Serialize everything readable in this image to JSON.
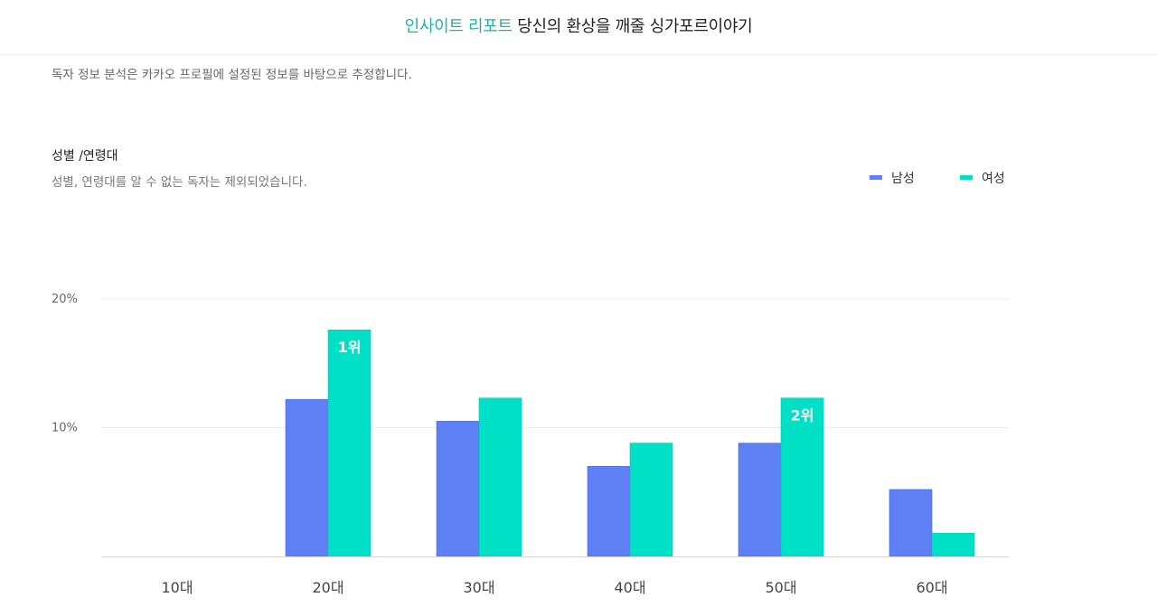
{
  "header": {
    "brand": "인사이트 리포트",
    "title": "당신의 환상을 깨줄 싱가포르이야기"
  },
  "notice": "독자 정보 분석은 카카오 프로필에 설정된 정보를 바탕으로 추정합니다.",
  "section": {
    "title": "성별 /연령대",
    "description": "성별, 연령대를 알 수 없는 독자는 제외되었습니다."
  },
  "colors": {
    "male": "#5f80f5",
    "female": "#00e0c6",
    "brand": "#1bb3a8"
  },
  "chart_data": {
    "type": "bar",
    "categories": [
      "10대",
      "20대",
      "30대",
      "40대",
      "50대",
      "60대"
    ],
    "series": [
      {
        "name": "남성",
        "values": [
          0,
          12.2,
          10.5,
          7.0,
          8.8,
          5.2
        ]
      },
      {
        "name": "여성",
        "values": [
          0,
          17.6,
          12.3,
          8.8,
          12.3,
          1.8
        ]
      }
    ],
    "ylim": [
      0,
      20
    ],
    "yticks": [
      {
        "value": 20,
        "label": "20%"
      },
      {
        "value": 10,
        "label": "10%"
      }
    ],
    "grid": true,
    "legend_position": "top-right",
    "annotations": [
      {
        "series": 1,
        "category": 1,
        "label": "1위"
      },
      {
        "series": 1,
        "category": 4,
        "label": "2위"
      }
    ]
  }
}
